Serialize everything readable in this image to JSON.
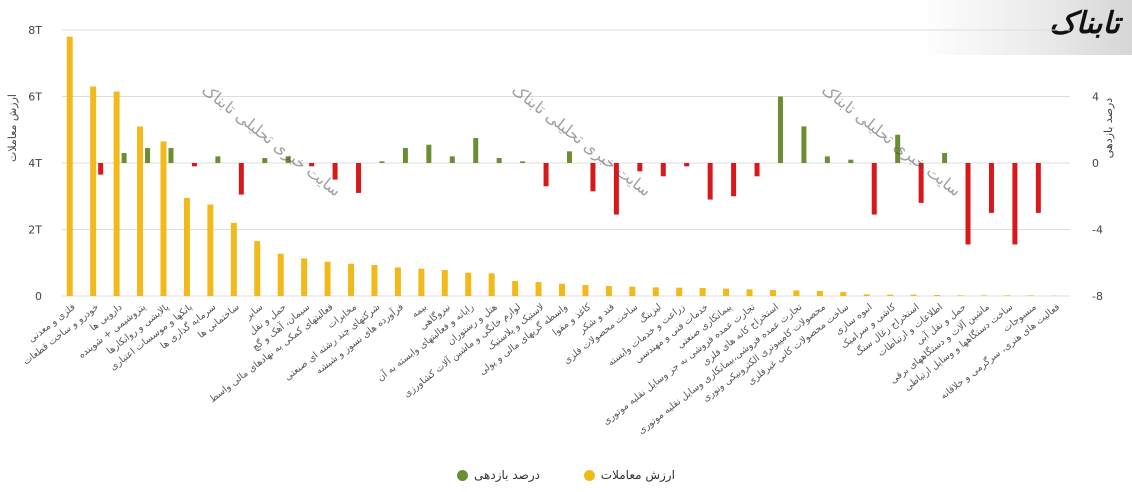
{
  "logo": {
    "text": "تابناک"
  },
  "watermarks": [
    "سایت خبری تحلیلی تابناک",
    "سایت خبری تحلیلی تابناک",
    "سایت خبری تحلیلی تابناک"
  ],
  "legend": {
    "returns_label": "درصد بازدهی",
    "value_label": "ارزش معاملات"
  },
  "colors": {
    "value_bar": "#F2B91B",
    "return_pos": "#6B8E35",
    "return_neg": "#D7191C",
    "grid": "#dddddd",
    "axis_text": "#444444"
  },
  "chart_data": {
    "type": "bar",
    "title": "",
    "left_axis": {
      "label": "ارزش معاملات",
      "ticks": [
        {
          "v": 0,
          "label": "0"
        },
        {
          "v": 2,
          "label": "2T"
        },
        {
          "v": 4,
          "label": "4T"
        },
        {
          "v": 6,
          "label": "6T"
        },
        {
          "v": 8,
          "label": "8T"
        }
      ],
      "ylim": [
        0,
        8
      ]
    },
    "right_axis": {
      "label": "درصد بازدهی",
      "ticks": [
        {
          "v": -8,
          "label": "-8"
        },
        {
          "v": -4,
          "label": "-4"
        },
        {
          "v": 0,
          "label": "0"
        },
        {
          "v": 4,
          "label": "4"
        }
      ],
      "ylim": [
        -8,
        8
      ]
    },
    "categories": [
      "فلزی و معدنی",
      "خودرو و ساخت قطعات",
      "دارویی ها",
      "پتروشیمی + شوینده",
      "پالایشی و روانکارها",
      "بانکها و موسسات اعتباری",
      "سرمایه گذاری ها",
      "ساختمانی ها",
      "سایر",
      "حمل و نقل",
      "سیمان، آهک و گچ",
      "فعالیتهای کمکی به نهادهای مالی واسط",
      "مخابرات",
      "شرکتهای چند رشته ای صنعتی",
      "فرآورده های نسوز و شیشه",
      "بیمه",
      "نیروگاهی",
      "رایانه و فعالیتهای وابسته به آن",
      "هتل و رستوران",
      "لوازم خانگی و ماشین آلات کشاورزی",
      "لاستیک و پلاستیک",
      "واسطه گریهای مالی و پولی",
      "کاغذ و مقوا",
      "قند و شکر",
      "ساخت محصولات فلزی",
      "لیزینگ",
      "زراعت و خدمات وابسته",
      "خدمات فنی و مهندسی",
      "پیمانکاری صنعتی",
      "تجارت عمده فروشی به جز وسایل نقلیه موتوری",
      "استخراج کانه های فلزی",
      "تجارت عمده فروشی،بیمانکاری وسایل نقلیه موتوری",
      "محصولات کامپیوتری الکترونیکی ونوری",
      "ساخت محصولات کانی غیرفلزی",
      "انبوه سازی",
      "کاشی و سرامیک",
      "استخراج زغال سنگ",
      "اطلاعات و ارتباطات",
      "حمل و نقل آبی",
      "ماشین آلات و دستگاههای برقی",
      "ساخت دستگاهها و وسایل ارتباطی",
      "منسوجات",
      "فعالیت های هنری، سرگرمی و خلاقانه"
    ],
    "series": [
      {
        "name": "ارزش معاملات",
        "axis": "left",
        "unit": "T",
        "values": [
          7.8,
          6.3,
          6.15,
          5.1,
          4.65,
          2.95,
          2.75,
          2.2,
          1.65,
          1.27,
          1.13,
          1.03,
          0.97,
          0.93,
          0.86,
          0.82,
          0.78,
          0.7,
          0.68,
          0.45,
          0.42,
          0.37,
          0.33,
          0.3,
          0.28,
          0.26,
          0.25,
          0.24,
          0.22,
          0.2,
          0.18,
          0.17,
          0.15,
          0.12,
          0.05,
          0.04,
          0.04,
          0.03,
          0.02,
          0.02,
          0.02,
          0.02,
          0.01
        ]
      },
      {
        "name": "درصد بازدهی",
        "axis": "right",
        "unit": "%",
        "values": [
          0.0,
          -0.7,
          0.6,
          0.9,
          0.9,
          -0.2,
          0.4,
          -1.9,
          0.3,
          0.4,
          -0.2,
          -1.0,
          -1.8,
          0.1,
          0.9,
          1.1,
          0.4,
          1.5,
          0.3,
          0.1,
          -1.4,
          0.7,
          -1.7,
          -3.1,
          -0.5,
          -0.8,
          -0.2,
          -2.2,
          -2.0,
          -0.8,
          4.0,
          2.2,
          0.4,
          0.2,
          -3.1,
          1.7,
          -2.4,
          0.6,
          -4.9,
          -3.0,
          -4.9,
          -3.0,
          0.0
        ]
      }
    ]
  }
}
